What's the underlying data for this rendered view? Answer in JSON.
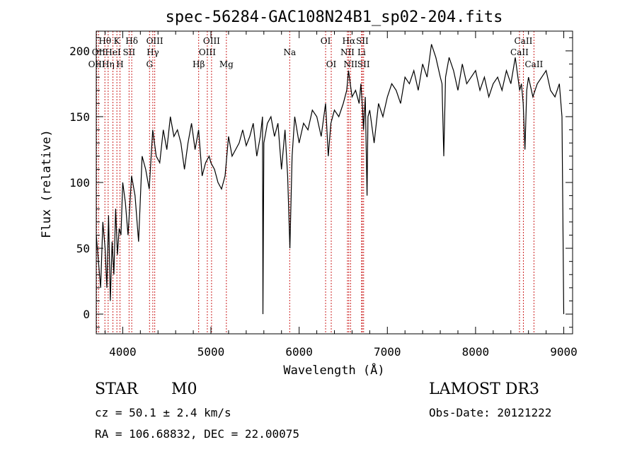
{
  "chart_data": {
    "type": "line",
    "title": "spec-56284-GAC108N24B1_sp02-204.fits",
    "xlabel": "Wavelength (Å)",
    "ylabel": "Flux (relative)",
    "xlim": [
      3700,
      9100
    ],
    "ylim": [
      -15,
      215
    ],
    "x_ticks": [
      4000,
      5000,
      6000,
      7000,
      8000,
      9000
    ],
    "y_ticks": [
      0,
      50,
      100,
      150,
      200
    ],
    "series": [
      {
        "name": "flux",
        "x": [
          3700,
          3725,
          3750,
          3775,
          3800,
          3820,
          3840,
          3860,
          3880,
          3900,
          3920,
          3940,
          3960,
          3980,
          4000,
          4030,
          4060,
          4100,
          4140,
          4180,
          4220,
          4260,
          4300,
          4340,
          4380,
          4420,
          4460,
          4500,
          4540,
          4580,
          4620,
          4660,
          4700,
          4740,
          4780,
          4820,
          4860,
          4900,
          4940,
          4980,
          5000,
          5040,
          5080,
          5120,
          5160,
          5200,
          5240,
          5280,
          5320,
          5360,
          5400,
          5440,
          5480,
          5520,
          5560,
          5585,
          5590,
          5600,
          5640,
          5680,
          5720,
          5760,
          5800,
          5840,
          5870,
          5895,
          5920,
          5950,
          6000,
          6050,
          6100,
          6150,
          6200,
          6250,
          6300,
          6330,
          6360,
          6400,
          6450,
          6500,
          6540,
          6560,
          6580,
          6600,
          6640,
          6680,
          6700,
          6720,
          6730,
          6750,
          6770,
          6780,
          6800,
          6850,
          6900,
          6950,
          7000,
          7050,
          7100,
          7150,
          7200,
          7250,
          7300,
          7350,
          7400,
          7450,
          7500,
          7550,
          7600,
          7620,
          7640,
          7660,
          7700,
          7750,
          7800,
          7850,
          7900,
          7950,
          8000,
          8050,
          8100,
          8150,
          8200,
          8250,
          8300,
          8350,
          8400,
          8450,
          8500,
          8520,
          8540,
          8560,
          8580,
          8600,
          8650,
          8700,
          8750,
          8800,
          8850,
          8900,
          8950,
          8980,
          9000
        ],
        "y": [
          60,
          40,
          20,
          70,
          50,
          20,
          75,
          10,
          55,
          30,
          80,
          45,
          65,
          60,
          100,
          85,
          60,
          105,
          90,
          55,
          120,
          110,
          95,
          140,
          120,
          115,
          140,
          125,
          150,
          135,
          140,
          130,
          110,
          130,
          145,
          125,
          140,
          105,
          115,
          120,
          115,
          110,
          100,
          95,
          105,
          135,
          120,
          125,
          130,
          140,
          128,
          135,
          145,
          120,
          135,
          150,
          0,
          130,
          145,
          150,
          135,
          145,
          110,
          140,
          105,
          50,
          120,
          150,
          130,
          145,
          140,
          155,
          150,
          135,
          160,
          120,
          145,
          155,
          150,
          160,
          170,
          185,
          175,
          165,
          170,
          160,
          175,
          155,
          140,
          165,
          90,
          150,
          155,
          130,
          160,
          150,
          165,
          175,
          170,
          160,
          180,
          175,
          185,
          170,
          190,
          180,
          205,
          195,
          180,
          175,
          120,
          180,
          195,
          185,
          170,
          190,
          175,
          180,
          185,
          170,
          180,
          165,
          175,
          180,
          170,
          185,
          175,
          195,
          170,
          175,
          160,
          125,
          170,
          180,
          165,
          175,
          180,
          185,
          170,
          165,
          175,
          150,
          0
        ]
      }
    ],
    "grid": false
  },
  "spectral_lines": [
    {
      "label": "Hθ",
      "wavelength": 3798,
      "row": 1
    },
    {
      "label": "OII",
      "wavelength": 3727,
      "row": 2
    },
    {
      "label": "OIII",
      "wavelength": 3705,
      "row": 3
    },
    {
      "label": "Hη",
      "wavelength": 3835,
      "row": 3
    },
    {
      "label": "HeI",
      "wavelength": 3889,
      "row": 2
    },
    {
      "label": "K",
      "wavelength": 3934,
      "row": 1
    },
    {
      "label": "H",
      "wavelength": 3969,
      "row": 3
    },
    {
      "label": "SII",
      "wavelength": 4072,
      "row": 2
    },
    {
      "label": "Hδ",
      "wavelength": 4102,
      "row": 1
    },
    {
      "label": "G",
      "wavelength": 4304,
      "row": 3
    },
    {
      "label": "Hγ",
      "wavelength": 4341,
      "row": 2
    },
    {
      "label": "OIII",
      "wavelength": 4363,
      "row": 1
    },
    {
      "label": "Hβ",
      "wavelength": 4861,
      "row": 3
    },
    {
      "label": "OIII",
      "wavelength": 4959,
      "row": 2
    },
    {
      "label": "OIII",
      "wavelength": 5007,
      "row": 1
    },
    {
      "label": "Mg",
      "wavelength": 5175,
      "row": 3
    },
    {
      "label": "Na",
      "wavelength": 5893,
      "row": 2
    },
    {
      "label": "OI",
      "wavelength": 6300,
      "row": 1
    },
    {
      "label": "OI",
      "wavelength": 6364,
      "row": 3
    },
    {
      "label": "NII",
      "wavelength": 6548,
      "row": 2
    },
    {
      "label": "Hα",
      "wavelength": 6563,
      "row": 1
    },
    {
      "label": "NII",
      "wavelength": 6583,
      "row": 3
    },
    {
      "label": "Li",
      "wavelength": 6708,
      "row": 2
    },
    {
      "label": "SII",
      "wavelength": 6716,
      "row": 1
    },
    {
      "label": "SII",
      "wavelength": 6731,
      "row": 3
    },
    {
      "label": "CaII",
      "wavelength": 8498,
      "row": 2
    },
    {
      "label": "CaII",
      "wavelength": 8542,
      "row": 1
    },
    {
      "label": "CaII",
      "wavelength": 8662,
      "row": 3
    }
  ],
  "info": {
    "object_class": "STAR",
    "subclass": "M0",
    "cz": "cz = 50.1 ± 2.4 km/s",
    "coords": "RA = 106.68832, DEC =  22.00075",
    "survey": "LAMOST DR3",
    "obs_date": "Obs-Date: 20121222"
  },
  "colors": {
    "line_marker": "#cc2222",
    "spectrum": "#000000"
  }
}
